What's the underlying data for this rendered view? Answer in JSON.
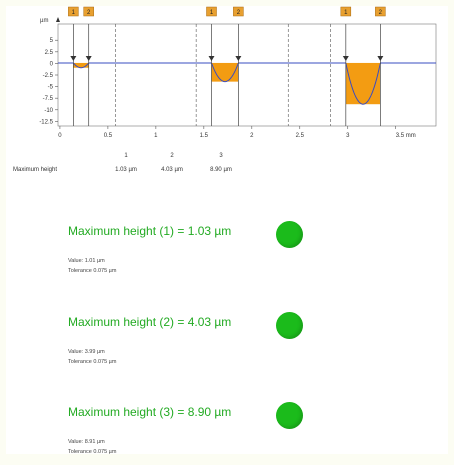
{
  "chart_data": {
    "type": "line",
    "y_unit": "µm",
    "x_unit": "mm",
    "x_ticks": [
      "0",
      "0.5",
      "1",
      "1.5",
      "2",
      "2.5",
      "3",
      "3.5 mm"
    ],
    "y_ticks": [
      "5",
      "2.5",
      "0",
      "-2.5",
      "-5",
      "-7.5",
      "-10",
      "-12.5"
    ],
    "xlim": [
      -0.02,
      3.92
    ],
    "ylim": [
      -13.5,
      8.5
    ],
    "grid": "dashed vertical",
    "baseline_y": 0.1,
    "markers": [
      {
        "label": "1",
        "x": 0.14
      },
      {
        "label": "2",
        "x": 0.3
      },
      {
        "label": "1",
        "x": 1.58
      },
      {
        "label": "2",
        "x": 1.86
      },
      {
        "label": "1",
        "x": 2.98
      },
      {
        "label": "2",
        "x": 3.34
      }
    ],
    "grooves": [
      {
        "x_start": 0.14,
        "x_end": 0.3,
        "depth": 1.03
      },
      {
        "x_start": 1.58,
        "x_end": 1.86,
        "depth": 4.03
      },
      {
        "x_start": 2.98,
        "x_end": 3.34,
        "depth": 8.9
      }
    ],
    "dashed_lines_x": [
      0.58,
      1.42,
      2.38,
      2.82
    ],
    "colors": {
      "profile": "#3a4cc0",
      "fill": "#f39c12",
      "marker": "#e8a030"
    }
  },
  "summary": {
    "label": "Maximum height",
    "indices": [
      "1",
      "2",
      "3"
    ],
    "values": [
      "1.03 µm",
      "4.03 µm",
      "8.90 µm"
    ]
  },
  "results": [
    {
      "title": "Maximum height (1) = 1.03 µm",
      "value": "Value: 1.01 µm",
      "tolerance": "Tolerance 0.075 µm",
      "status": "pass",
      "status_color": "#1bbb1b"
    },
    {
      "title": "Maximum height (2) = 4.03 µm",
      "value": "Value: 3.99 µm",
      "tolerance": "Tolerance 0.075 µm",
      "status": "pass",
      "status_color": "#1bbb1b"
    },
    {
      "title": "Maximum height (3) = 8.90 µm",
      "value": "Value: 8.91 µm",
      "tolerance": "Tolerance 0.075 µm",
      "status": "pass",
      "status_color": "#1bbb1b"
    }
  ]
}
